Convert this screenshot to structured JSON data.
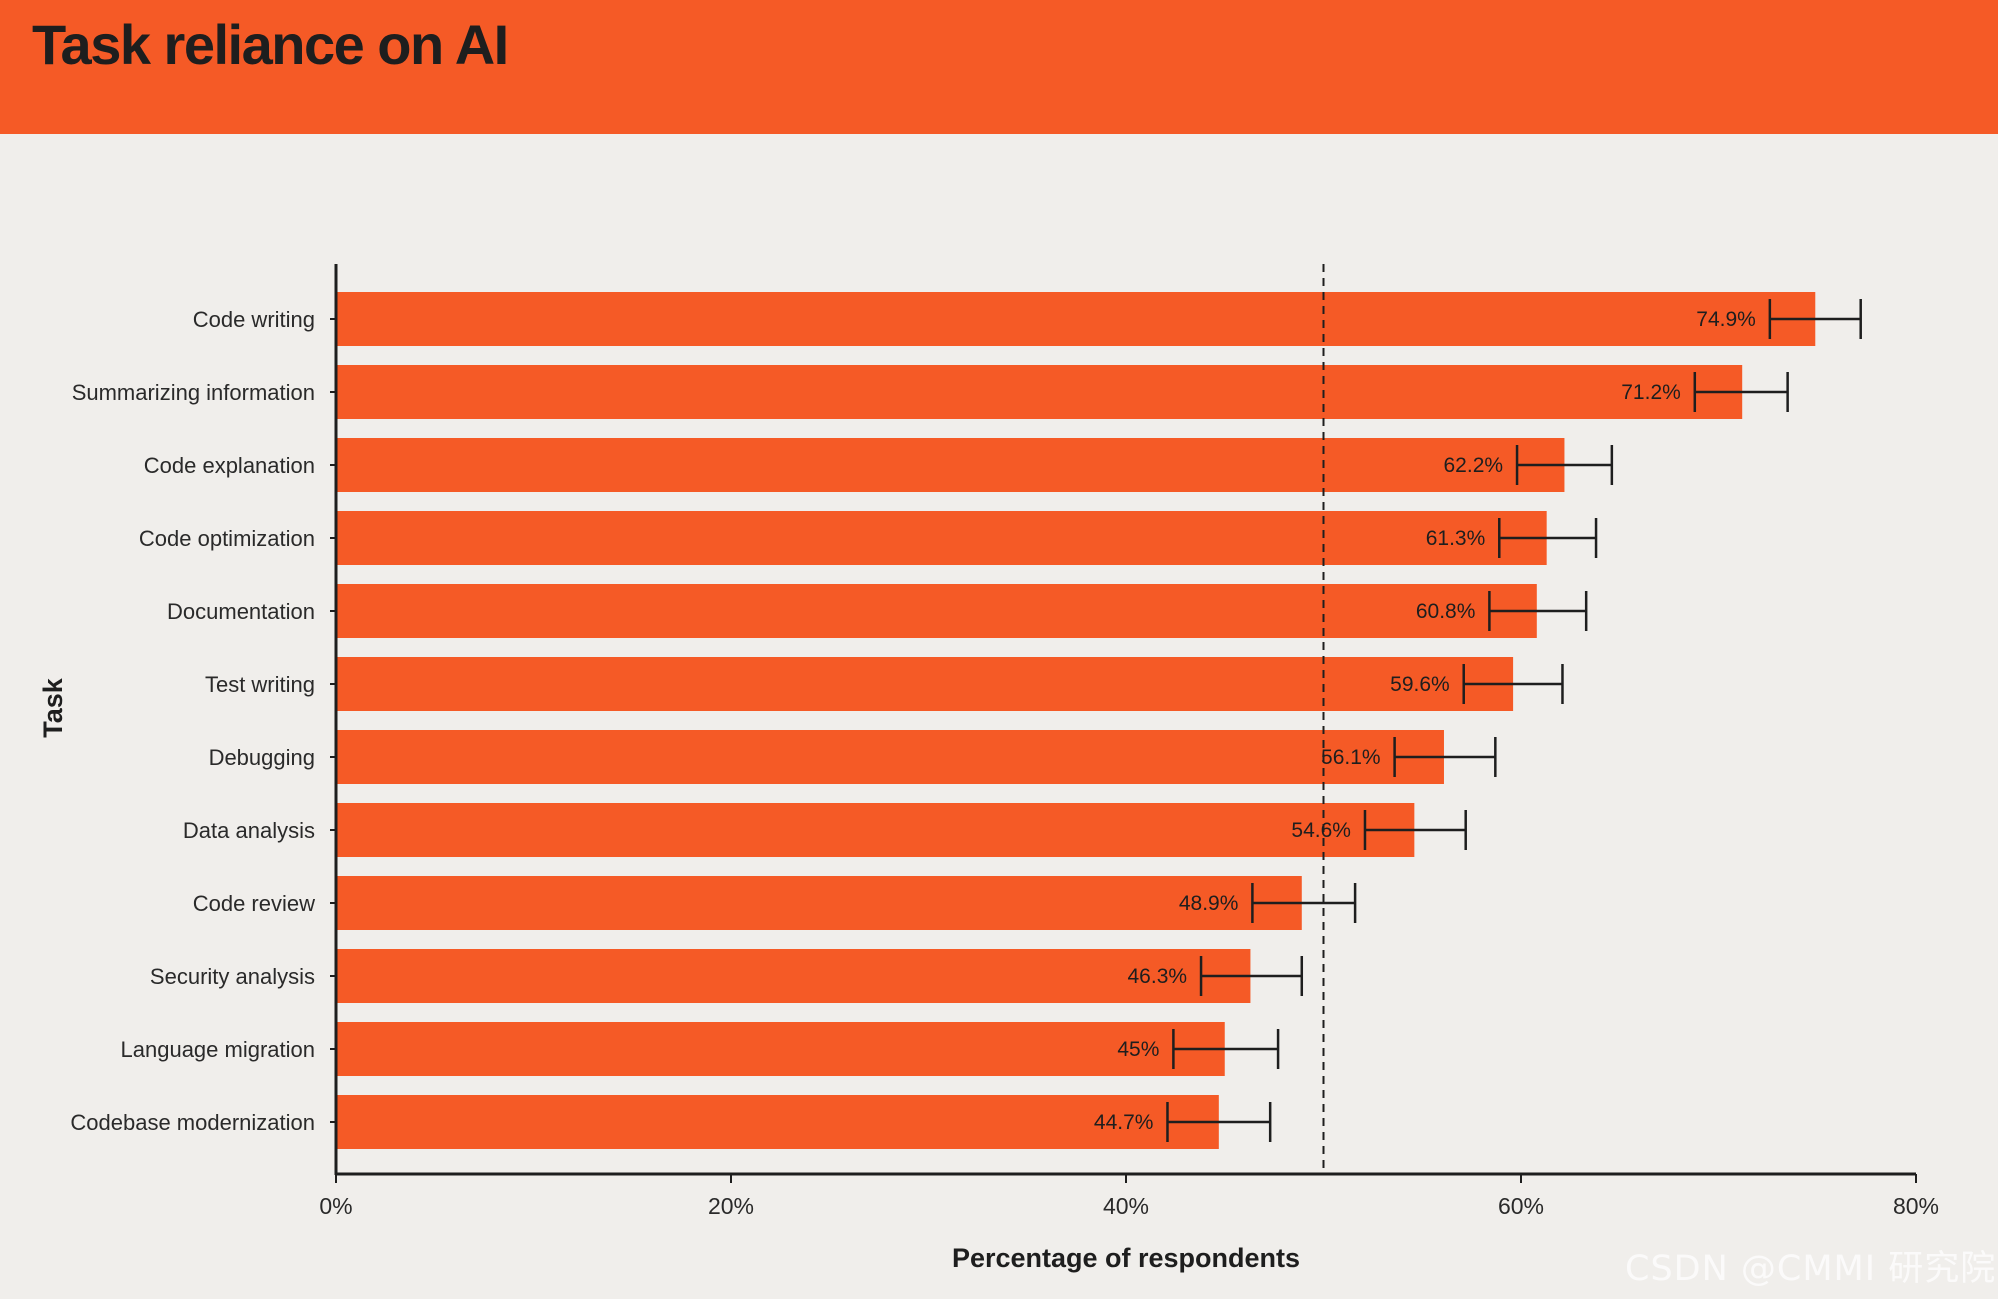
{
  "header": {
    "title": "Task reliance on AI"
  },
  "colors": {
    "header_background": "#f55a26",
    "bar": "#f55a26",
    "page_background": "#f0eeeb",
    "text": "#1e1e1e"
  },
  "chart_data": {
    "type": "bar",
    "orientation": "horizontal",
    "title": "Task reliance on AI",
    "xlabel": "Percentage of respondents",
    "ylabel": "Task",
    "xlim": [
      0,
      80
    ],
    "x_ticks": [
      0,
      20,
      40,
      60,
      80
    ],
    "x_tick_labels": [
      "0%",
      "20%",
      "40%",
      "60%",
      "80%"
    ],
    "reference_line": 50,
    "categories": [
      "Code writing",
      "Summarizing information",
      "Code explanation",
      "Code optimization",
      "Documentation",
      "Test writing",
      "Debugging",
      "Data analysis",
      "Code review",
      "Security analysis",
      "Language migration",
      "Codebase modernization"
    ],
    "values": [
      74.9,
      71.2,
      62.2,
      61.3,
      60.8,
      59.6,
      56.1,
      54.6,
      48.9,
      46.3,
      45,
      44.7
    ],
    "value_labels": [
      "74.9%",
      "71.2%",
      "62.2%",
      "61.3%",
      "60.8%",
      "59.6%",
      "56.1%",
      "54.6%",
      "48.9%",
      "46.3%",
      "45%",
      "44.7%"
    ],
    "error_low": [
      72.6,
      68.8,
      59.8,
      58.9,
      58.4,
      57.1,
      53.6,
      52.1,
      46.4,
      43.8,
      42.4,
      42.1
    ],
    "error_high": [
      77.2,
      73.5,
      64.6,
      63.8,
      63.3,
      62.1,
      58.7,
      57.2,
      51.6,
      48.9,
      47.7,
      47.3
    ],
    "grid": false
  },
  "watermark": {
    "text": "CSDN @CMMI 研究院"
  }
}
